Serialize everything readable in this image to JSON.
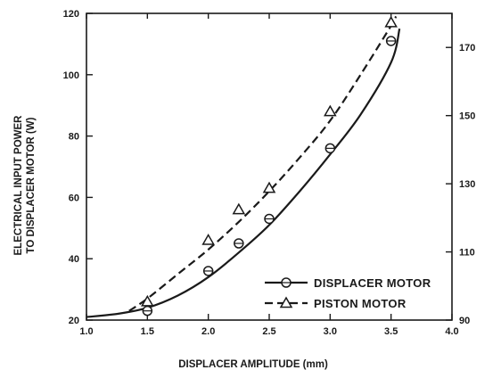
{
  "chart_data": {
    "type": "line",
    "title": "",
    "xlabel": "DISPLACER AMPLITUDE (mm)",
    "ylabel_line1": "ELECTRICAL INPUT POWER",
    "ylabel_line2": "TO DISPLACER MOTOR (W)",
    "xlim": [
      1.0,
      4.0
    ],
    "ylim": [
      20,
      120
    ],
    "y2lim": [
      90,
      180
    ],
    "x_ticks": [
      "1.0",
      "1.5",
      "2.0",
      "2.5",
      "3.0",
      "3.5",
      "4.0"
    ],
    "y_ticks": [
      "20",
      "40",
      "60",
      "80",
      "100",
      "120"
    ],
    "y2_ticks": [
      "90",
      "110",
      "130",
      "150",
      "170"
    ],
    "grid": false,
    "legend_position": "bottom-right",
    "series": [
      {
        "name": "DISPLACER MOTOR",
        "marker": "circle",
        "line_style": "solid",
        "axis": "left",
        "points": [
          {
            "x": 1.5,
            "y": 23
          },
          {
            "x": 2.0,
            "y": 36
          },
          {
            "x": 2.25,
            "y": 45
          },
          {
            "x": 2.5,
            "y": 53
          },
          {
            "x": 3.0,
            "y": 76
          },
          {
            "x": 3.5,
            "y": 111
          }
        ],
        "curve": [
          {
            "x": 1.0,
            "y": 21
          },
          {
            "x": 1.25,
            "y": 22
          },
          {
            "x": 1.5,
            "y": 24
          },
          {
            "x": 1.75,
            "y": 28
          },
          {
            "x": 2.0,
            "y": 34
          },
          {
            "x": 2.25,
            "y": 42
          },
          {
            "x": 2.5,
            "y": 51
          },
          {
            "x": 2.75,
            "y": 62
          },
          {
            "x": 3.0,
            "y": 74
          },
          {
            "x": 3.25,
            "y": 87
          },
          {
            "x": 3.5,
            "y": 104
          },
          {
            "x": 3.57,
            "y": 115
          }
        ]
      },
      {
        "name": "PISTON MOTOR",
        "marker": "triangle",
        "line_style": "dashed",
        "axis": "left",
        "points": [
          {
            "x": 1.5,
            "y": 26
          },
          {
            "x": 2.0,
            "y": 46
          },
          {
            "x": 2.25,
            "y": 56
          },
          {
            "x": 2.5,
            "y": 63
          },
          {
            "x": 3.0,
            "y": 88
          },
          {
            "x": 3.5,
            "y": 117
          }
        ],
        "curve": [
          {
            "x": 1.35,
            "y": 23
          },
          {
            "x": 1.5,
            "y": 27
          },
          {
            "x": 1.75,
            "y": 35
          },
          {
            "x": 2.0,
            "y": 43
          },
          {
            "x": 2.25,
            "y": 52
          },
          {
            "x": 2.5,
            "y": 62
          },
          {
            "x": 2.75,
            "y": 73
          },
          {
            "x": 3.0,
            "y": 85
          },
          {
            "x": 3.25,
            "y": 100
          },
          {
            "x": 3.5,
            "y": 116
          },
          {
            "x": 3.54,
            "y": 119
          }
        ]
      }
    ]
  }
}
